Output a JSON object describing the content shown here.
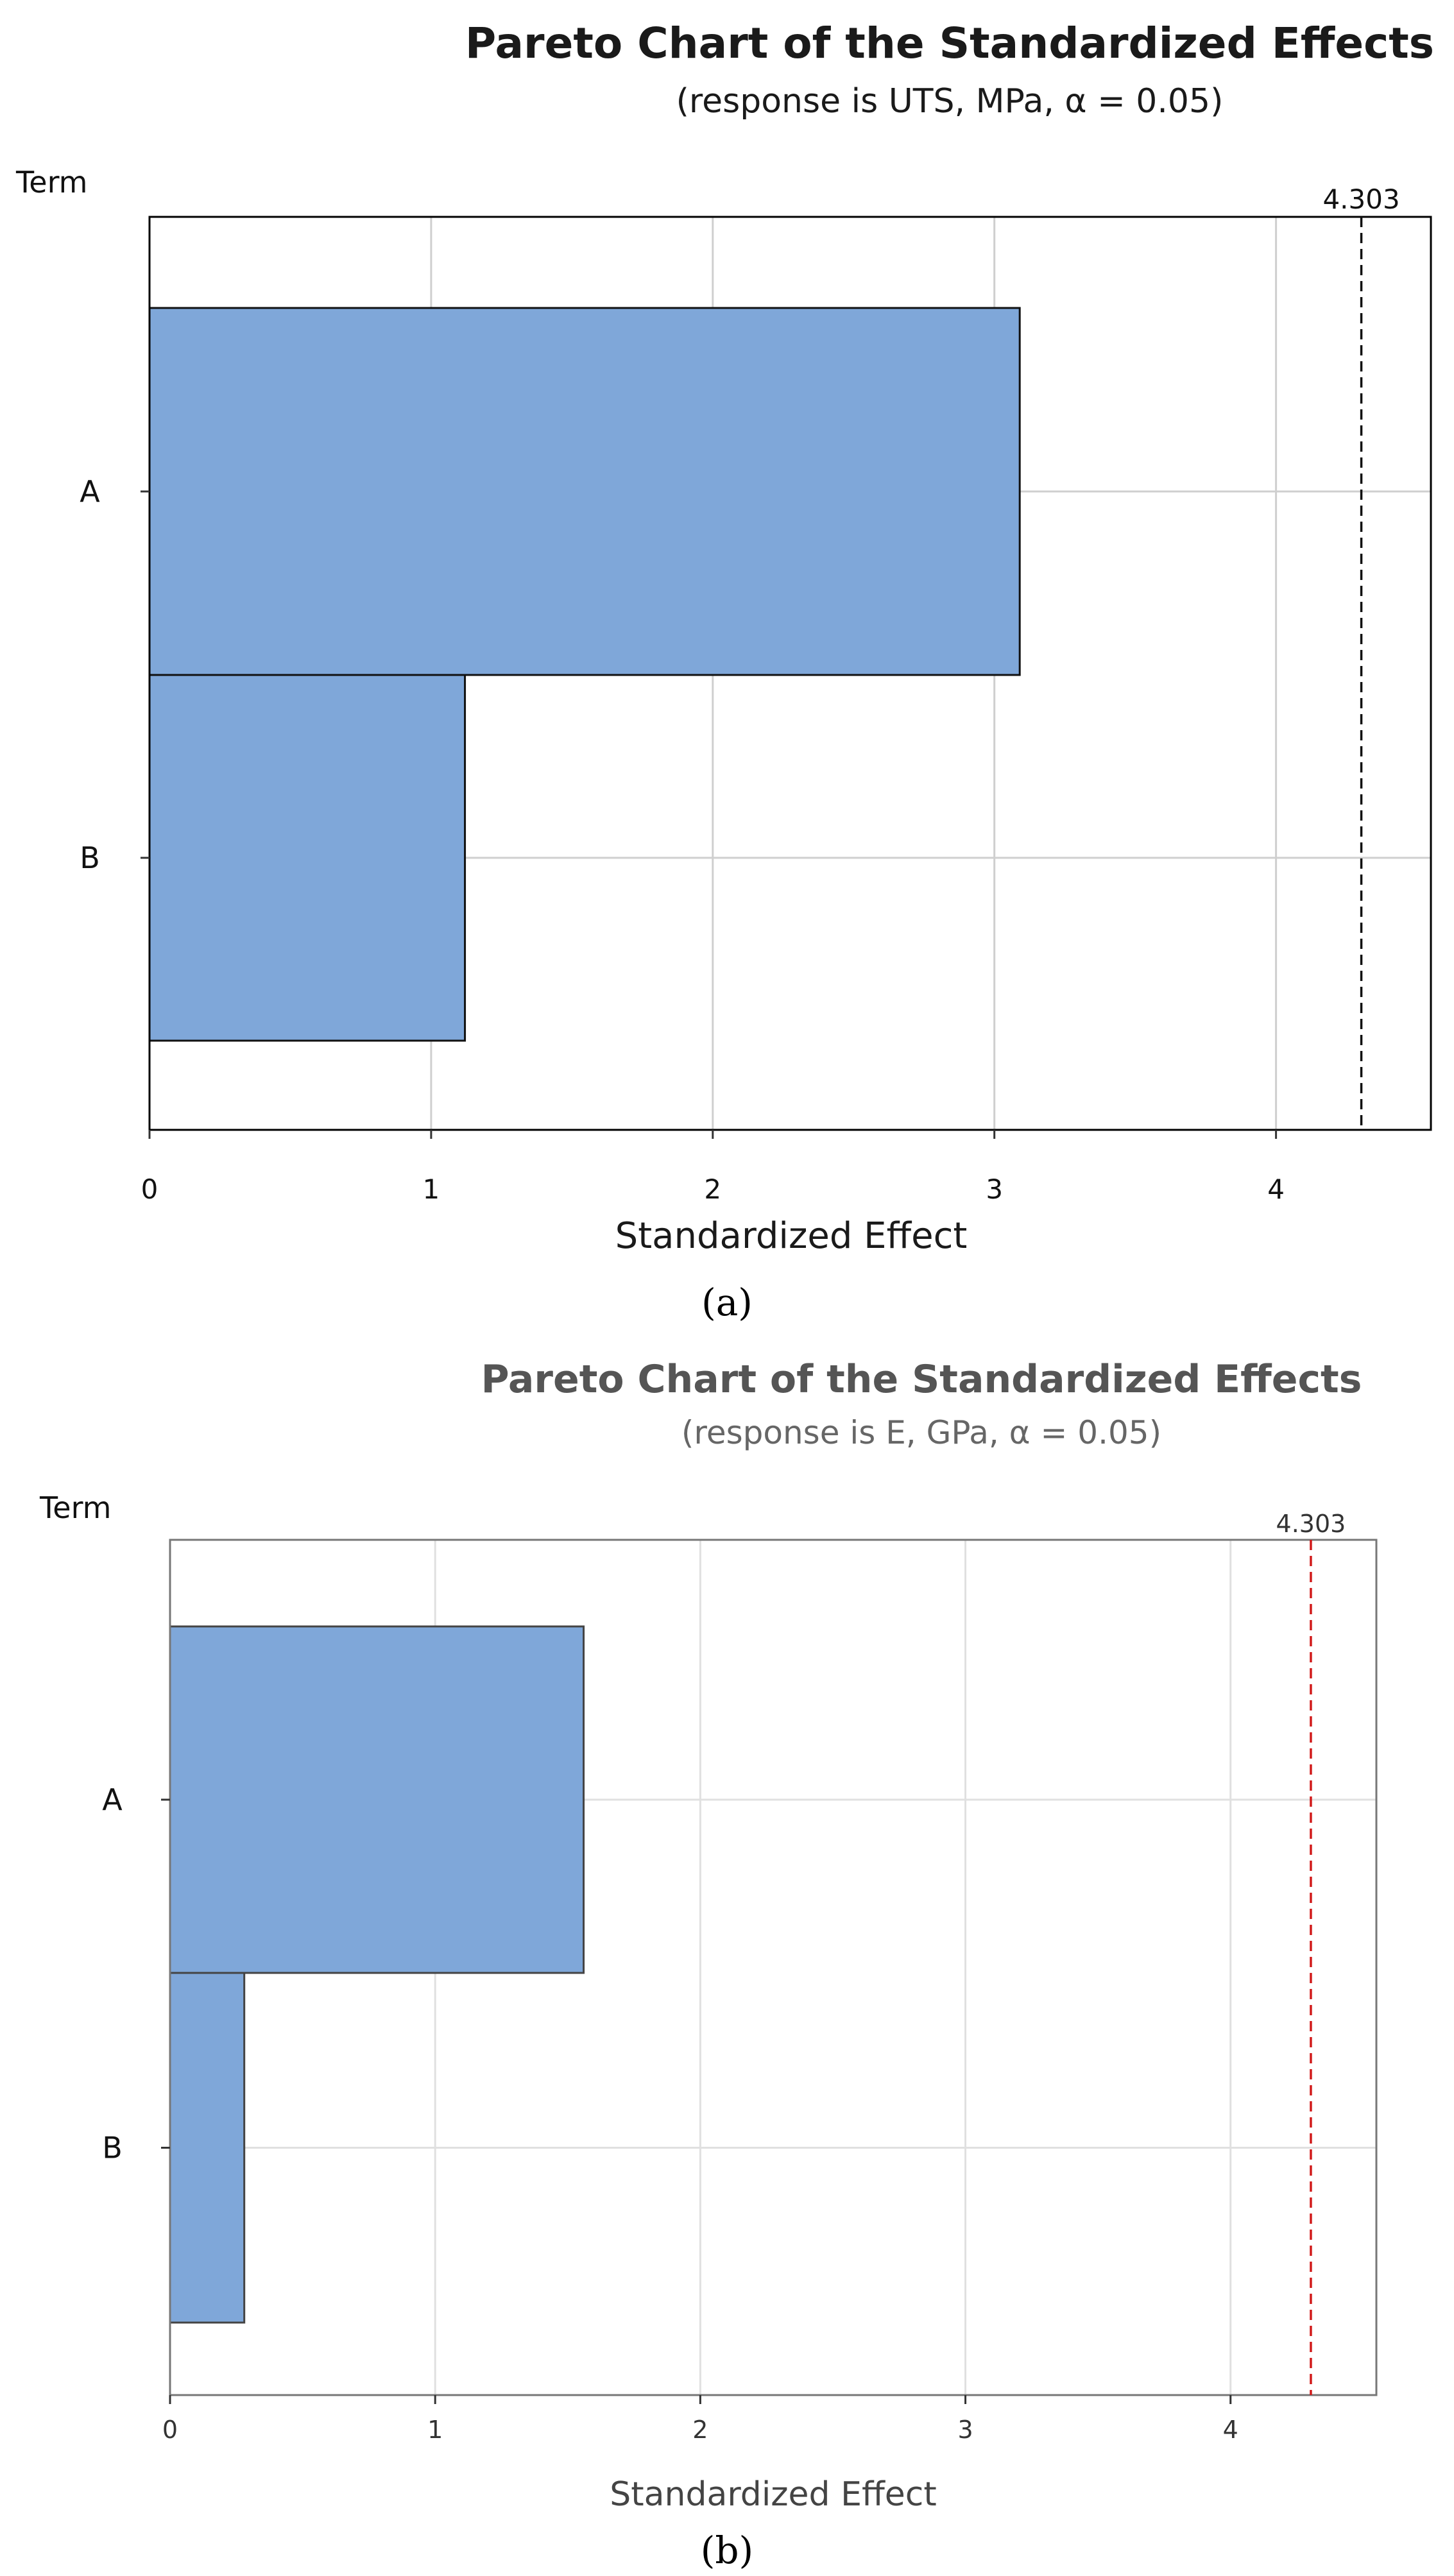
{
  "chart_data": [
    {
      "type": "bar",
      "orientation": "horizontal",
      "title": "Pareto Chart of the Standardized Effects",
      "subtitle": "(response is UTS, MPa, α = 0.05)",
      "ylabel": "Term",
      "xlabel": "Standardized Effect",
      "categories": [
        "A",
        "B"
      ],
      "values": [
        3.09,
        1.12
      ],
      "xlim": [
        0,
        4.55
      ],
      "xticks": [
        "0",
        "1",
        "2",
        "3",
        "4"
      ],
      "reference_line": {
        "value": 4.303,
        "label": "4.303",
        "color": "#5a1a1a"
      },
      "bar_color": "#7fa7d9",
      "grid": true,
      "caption": "(a)"
    },
    {
      "type": "bar",
      "orientation": "horizontal",
      "title": "Pareto Chart of the Standardized Effects",
      "subtitle": "(response is E, GPa, α = 0.05)",
      "ylabel": "Term",
      "xlabel": "Standardized Effect",
      "categories": [
        "A",
        "B"
      ],
      "values": [
        1.56,
        0.28
      ],
      "xlim": [
        0,
        4.55
      ],
      "xticks": [
        "0",
        "1",
        "2",
        "3",
        "4"
      ],
      "reference_line": {
        "value": 4.303,
        "label": "4.303",
        "color": "#d11a1a"
      },
      "bar_color": "#7fa7d9",
      "grid": true,
      "caption": "(b)"
    }
  ]
}
